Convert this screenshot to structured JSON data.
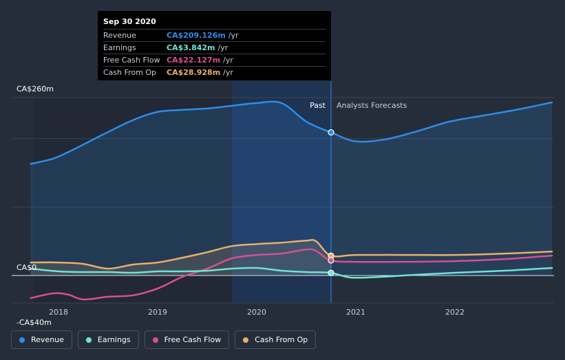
{
  "tooltip": {
    "date": "Sep 30 2020",
    "rows": [
      {
        "label": "Revenue",
        "value": "CA$209.126m",
        "unit": "/yr",
        "color": "#2d8ee8"
      },
      {
        "label": "Earnings",
        "value": "CA$3.842m",
        "unit": "/yr",
        "color": "#6fe5d4"
      },
      {
        "label": "Free Cash Flow",
        "value": "CA$22.127m",
        "unit": "/yr",
        "color": "#d8508f"
      },
      {
        "label": "Cash From Op",
        "value": "CA$28.928m",
        "unit": "/yr",
        "color": "#e8b06a"
      }
    ]
  },
  "legend": [
    {
      "label": "Revenue",
      "color": "#2d8ee8"
    },
    {
      "label": "Earnings",
      "color": "#6fe5d4"
    },
    {
      "label": "Free Cash Flow",
      "color": "#d8508f"
    },
    {
      "label": "Cash From Op",
      "color": "#e8b06a"
    }
  ],
  "chart_data": {
    "type": "line",
    "title": "",
    "xlabel": "",
    "ylabel": "",
    "ylim": [
      -40,
      260
    ],
    "xlim": [
      2017.55,
      2022.98
    ],
    "y_tick_labels": [
      {
        "value": 260,
        "label": "CA$260m"
      },
      {
        "value": 0,
        "label": "CA$0"
      },
      {
        "value": -40,
        "label": "-CA$40m"
      }
    ],
    "x_tick_labels": [
      "2018",
      "2019",
      "2020",
      "2021",
      "2022"
    ],
    "x_ticks": [
      2018,
      2019,
      2020,
      2021,
      2022
    ],
    "gridlines": [
      260,
      200,
      100,
      0
    ],
    "divider_x": 2020.75,
    "past_label": "Past",
    "forecast_label": "Analysts Forecasts",
    "series": [
      {
        "name": "Revenue",
        "color": "#2d8ee8",
        "x": [
          2017.72,
          2017.95,
          2018.15,
          2018.45,
          2018.75,
          2019.0,
          2019.25,
          2019.5,
          2019.75,
          2020.0,
          2020.25,
          2020.5,
          2020.75,
          2021.0,
          2021.3,
          2021.6,
          2021.95,
          2022.3,
          2022.65,
          2022.98
        ],
        "y": [
          163,
          171,
          184,
          206,
          227,
          239,
          242,
          244,
          248,
          252,
          252,
          225,
          209,
          196,
          199,
          210,
          225,
          234,
          243,
          253
        ]
      },
      {
        "name": "Cash From Op",
        "color": "#e8b06a",
        "x": [
          2017.72,
          2018.0,
          2018.25,
          2018.5,
          2018.75,
          2019.0,
          2019.25,
          2019.5,
          2019.75,
          2020.0,
          2020.25,
          2020.5,
          2020.6,
          2020.75,
          2021.0,
          2021.5,
          2022.0,
          2022.5,
          2022.98
        ],
        "y": [
          19,
          19,
          17,
          10,
          16,
          19,
          26,
          34,
          43,
          46,
          48,
          51,
          50,
          29,
          30,
          30,
          30,
          32,
          35
        ]
      },
      {
        "name": "Free Cash Flow",
        "color": "#d8508f",
        "x": [
          2017.72,
          2017.95,
          2018.1,
          2018.25,
          2018.5,
          2018.75,
          2019.0,
          2019.25,
          2019.5,
          2019.75,
          2020.0,
          2020.25,
          2020.5,
          2020.6,
          2020.75,
          2021.0,
          2021.5,
          2022.0,
          2022.5,
          2022.98
        ],
        "y": [
          -33,
          -26,
          -28,
          -35,
          -31,
          -29,
          -19,
          -2,
          10,
          25,
          30,
          32,
          38,
          36,
          22,
          20,
          20,
          21,
          24,
          29
        ]
      },
      {
        "name": "Earnings",
        "color": "#6fe5d4",
        "x": [
          2017.72,
          2018.0,
          2018.25,
          2018.5,
          2018.75,
          2019.0,
          2019.25,
          2019.5,
          2019.75,
          2020.0,
          2020.25,
          2020.5,
          2020.75,
          2020.95,
          2021.25,
          2021.6,
          2022.0,
          2022.5,
          2022.98
        ],
        "y": [
          10,
          6,
          5,
          5,
          4,
          6,
          6,
          7,
          10,
          11,
          7,
          5,
          3.8,
          -3,
          -2,
          1,
          4,
          7,
          11
        ]
      }
    ],
    "markers": [
      {
        "series": "Revenue",
        "x": 2020.75,
        "y": 209.126
      },
      {
        "series": "Cash From Op",
        "x": 2020.75,
        "y": 28.928
      },
      {
        "series": "Free Cash Flow",
        "x": 2020.75,
        "y": 22.127
      },
      {
        "series": "Earnings",
        "x": 2020.75,
        "y": 3.842
      }
    ]
  }
}
